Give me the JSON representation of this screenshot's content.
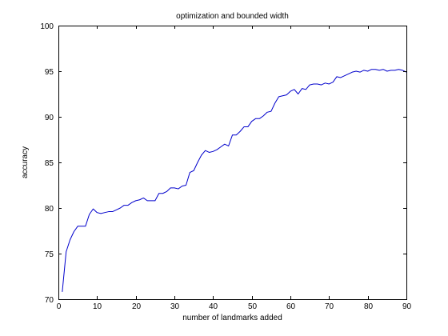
{
  "chart_data": {
    "type": "line",
    "title": "optimization and bounded width",
    "xlabel": "number of landmarks added",
    "ylabel": "accuracy",
    "xlim": [
      0,
      90
    ],
    "ylim": [
      70,
      100
    ],
    "xticks": [
      0,
      10,
      20,
      30,
      40,
      50,
      60,
      70,
      80,
      90
    ],
    "yticks": [
      70,
      75,
      80,
      85,
      90,
      95,
      100
    ],
    "grid": false,
    "series": [
      {
        "name": "accuracy",
        "color": "#0000cc",
        "x": [
          1,
          2,
          3,
          4,
          5,
          6,
          7,
          8,
          9,
          10,
          11,
          12,
          13,
          14,
          15,
          16,
          17,
          18,
          19,
          20,
          21,
          22,
          23,
          24,
          25,
          26,
          27,
          28,
          29,
          30,
          31,
          32,
          33,
          34,
          35,
          36,
          37,
          38,
          39,
          40,
          41,
          42,
          43,
          44,
          45,
          46,
          47,
          48,
          49,
          50,
          51,
          52,
          53,
          54,
          55,
          56,
          57,
          58,
          59,
          60,
          61,
          62,
          63,
          64,
          65,
          66,
          67,
          68,
          69,
          70,
          71,
          72,
          73,
          74,
          75,
          76,
          77,
          78,
          79,
          80,
          81,
          82,
          83,
          84,
          85,
          86,
          87,
          88,
          89,
          90
        ],
        "values": [
          70.8,
          75.2,
          76.5,
          77.4,
          78.0,
          78.0,
          78.0,
          79.3,
          79.9,
          79.5,
          79.4,
          79.5,
          79.6,
          79.6,
          79.8,
          80.0,
          80.3,
          80.3,
          80.6,
          80.8,
          80.9,
          81.1,
          80.8,
          80.8,
          80.8,
          81.6,
          81.6,
          81.8,
          82.2,
          82.2,
          82.1,
          82.4,
          82.5,
          83.9,
          84.1,
          85.0,
          85.8,
          86.3,
          86.1,
          86.2,
          86.4,
          86.7,
          87.0,
          86.8,
          88.0,
          88.0,
          88.4,
          88.9,
          88.9,
          89.5,
          89.8,
          89.8,
          90.1,
          90.5,
          90.6,
          91.5,
          92.2,
          92.3,
          92.4,
          92.8,
          93.0,
          92.5,
          93.1,
          93.0,
          93.5,
          93.6,
          93.6,
          93.5,
          93.7,
          93.6,
          93.8,
          94.4,
          94.3,
          94.5,
          94.7,
          94.9,
          95.0,
          94.9,
          95.1,
          95.0,
          95.2,
          95.2,
          95.1,
          95.2,
          95.0,
          95.1,
          95.1,
          95.2,
          95.1,
          94.9
        ]
      }
    ]
  }
}
